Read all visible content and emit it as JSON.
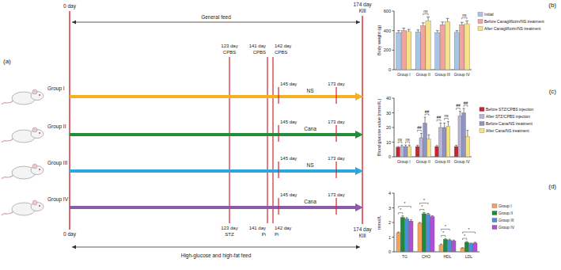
{
  "figure_labels": [
    "(a)",
    "(b)",
    "(c)",
    "(d)"
  ],
  "diagram": {
    "start_day": "0 day",
    "end_day": "174 day",
    "end_event": "Kill",
    "top_feed": "General feed",
    "bottom_feed": "High-glucose and high-fat feed",
    "top_events": [
      {
        "day": "123 day",
        "label": "CPBS"
      },
      {
        "day": "141 day",
        "label": "CPBS"
      },
      {
        "day": "142 day",
        "label": "CPBS"
      }
    ],
    "bottom_events": [
      {
        "day": "123 day",
        "label": "STZ"
      },
      {
        "day": "141 day",
        "label": "Pi"
      },
      {
        "day": "142 day",
        "label": "Pi"
      }
    ],
    "treatment_start": "145 day",
    "treatment_end": "173 day",
    "groups": [
      {
        "name": "Group I",
        "treatment": "NS",
        "color": "#f5b120"
      },
      {
        "name": "Group II",
        "treatment": "Cana",
        "color": "#1f8f3a"
      },
      {
        "name": "Group III",
        "treatment": "NS",
        "color": "#2aa7de"
      },
      {
        "name": "Group IV",
        "treatment": "Cana",
        "color": "#8e5aa8"
      }
    ]
  },
  "chart_data": [
    {
      "type": "bar",
      "y_label": "Body weight (g)",
      "categories": [
        "Group I",
        "Group II",
        "Group III",
        "Group IV"
      ],
      "ylim": [
        0,
        600
      ],
      "yticks": [
        0,
        200,
        400,
        600
      ],
      "legend": "right",
      "series": [
        {
          "name": "Initial",
          "color": "#a8c4e8",
          "values": [
            380,
            385,
            380,
            382
          ],
          "errors": [
            20,
            22,
            20,
            18
          ]
        },
        {
          "name": "Before Canagliflozin/NS treatment",
          "color": "#f2a49c",
          "values": [
            400,
            450,
            460,
            460
          ],
          "errors": [
            25,
            30,
            28,
            25
          ]
        },
        {
          "name": "After Canagliflozin/NS treatment",
          "color": "#f7e08a",
          "values": [
            390,
            500,
            490,
            470
          ],
          "errors": [
            22,
            40,
            35,
            30
          ]
        }
      ],
      "annotations": [
        {
          "text": "ns",
          "category": 1,
          "series": [
            1,
            2
          ]
        },
        {
          "text": "ns",
          "category": 3,
          "series": [
            1,
            2
          ]
        }
      ]
    },
    {
      "type": "bar",
      "y_label": "Blood glucose value (mmol/L)",
      "categories": [
        "Group I",
        "Group II",
        "Group III",
        "Group IV"
      ],
      "ylim": [
        0,
        40
      ],
      "yticks": [
        0,
        10,
        20,
        30,
        40
      ],
      "legend": "right",
      "series": [
        {
          "name": "Before STZ/CPBS injection",
          "color": "#c8262c",
          "values": [
            6.5,
            7,
            7,
            7
          ],
          "errors": [
            0.5,
            0.8,
            0.7,
            0.8
          ]
        },
        {
          "name": "After STZ/CPBS injection",
          "color": "#b9b4d9",
          "values": [
            7,
            13,
            20,
            28
          ],
          "errors": [
            1,
            3,
            3,
            3
          ]
        },
        {
          "name": "Before Cana/NS treatment",
          "color": "#8f95bf",
          "values": [
            7,
            23,
            20,
            30
          ],
          "errors": [
            1,
            4,
            3,
            3
          ]
        },
        {
          "name": "After Cana/NS treatment",
          "color": "#f6e27f",
          "values": [
            7,
            12,
            21,
            14
          ],
          "errors": [
            1,
            3,
            3,
            4
          ]
        }
      ],
      "annotations": [
        {
          "text": "ns",
          "category": 0,
          "series": [
            0,
            1
          ]
        },
        {
          "text": "ns",
          "category": 0,
          "series": [
            2,
            3
          ]
        },
        {
          "text": "##",
          "category": 1,
          "series": [
            0,
            1
          ]
        },
        {
          "text": "##",
          "category": 1,
          "series": [
            2,
            3
          ]
        },
        {
          "text": "##",
          "category": 2,
          "series": [
            0,
            1
          ]
        },
        {
          "text": "ns",
          "category": 2,
          "series": [
            2,
            3
          ]
        },
        {
          "text": "##",
          "category": 3,
          "series": [
            0,
            1
          ]
        },
        {
          "text": "##",
          "category": 3,
          "series": [
            2,
            3
          ]
        }
      ]
    },
    {
      "type": "bar",
      "y_label": "mmol/L",
      "categories": [
        "TG",
        "CHO",
        "HDL",
        "LDL"
      ],
      "ylim": [
        0,
        4
      ],
      "yticks": [
        0,
        1,
        2,
        3,
        4
      ],
      "legend": "right",
      "series": [
        {
          "name": "Group I",
          "color": "#f4a259",
          "values": [
            1.3,
            1.95,
            0.45,
            0.25
          ],
          "errors": [
            0.05,
            0.05,
            0.08,
            0.03
          ]
        },
        {
          "name": "Group II",
          "color": "#1f8a3b",
          "values": [
            2.35,
            2.6,
            0.85,
            0.65
          ],
          "errors": [
            0.1,
            0.08,
            0.05,
            0.05
          ]
        },
        {
          "name": "Group III",
          "color": "#4a8fdc",
          "values": [
            2.25,
            2.55,
            0.8,
            0.55
          ],
          "errors": [
            0.08,
            0.07,
            0.06,
            0.05
          ]
        },
        {
          "name": "Group IV",
          "color": "#b04fd1",
          "values": [
            2.1,
            2.4,
            0.75,
            0.6
          ],
          "errors": [
            0.08,
            0.06,
            0.05,
            0.05
          ]
        }
      ],
      "annotations": [
        {
          "text": "*",
          "category": 0,
          "series": [
            0,
            1
          ]
        },
        {
          "text": "*",
          "category": 0,
          "series": [
            0,
            3
          ]
        },
        {
          "text": "*",
          "category": 1,
          "series": [
            0,
            1
          ]
        },
        {
          "text": "*",
          "category": 1,
          "series": [
            0,
            2
          ]
        },
        {
          "text": "*",
          "category": 2,
          "series": [
            0,
            1
          ]
        },
        {
          "text": "*",
          "category": 2,
          "series": [
            0,
            2
          ]
        },
        {
          "text": "*",
          "category": 3,
          "series": [
            0,
            1
          ]
        },
        {
          "text": "*",
          "category": 3,
          "series": [
            0,
            3
          ]
        }
      ]
    }
  ]
}
